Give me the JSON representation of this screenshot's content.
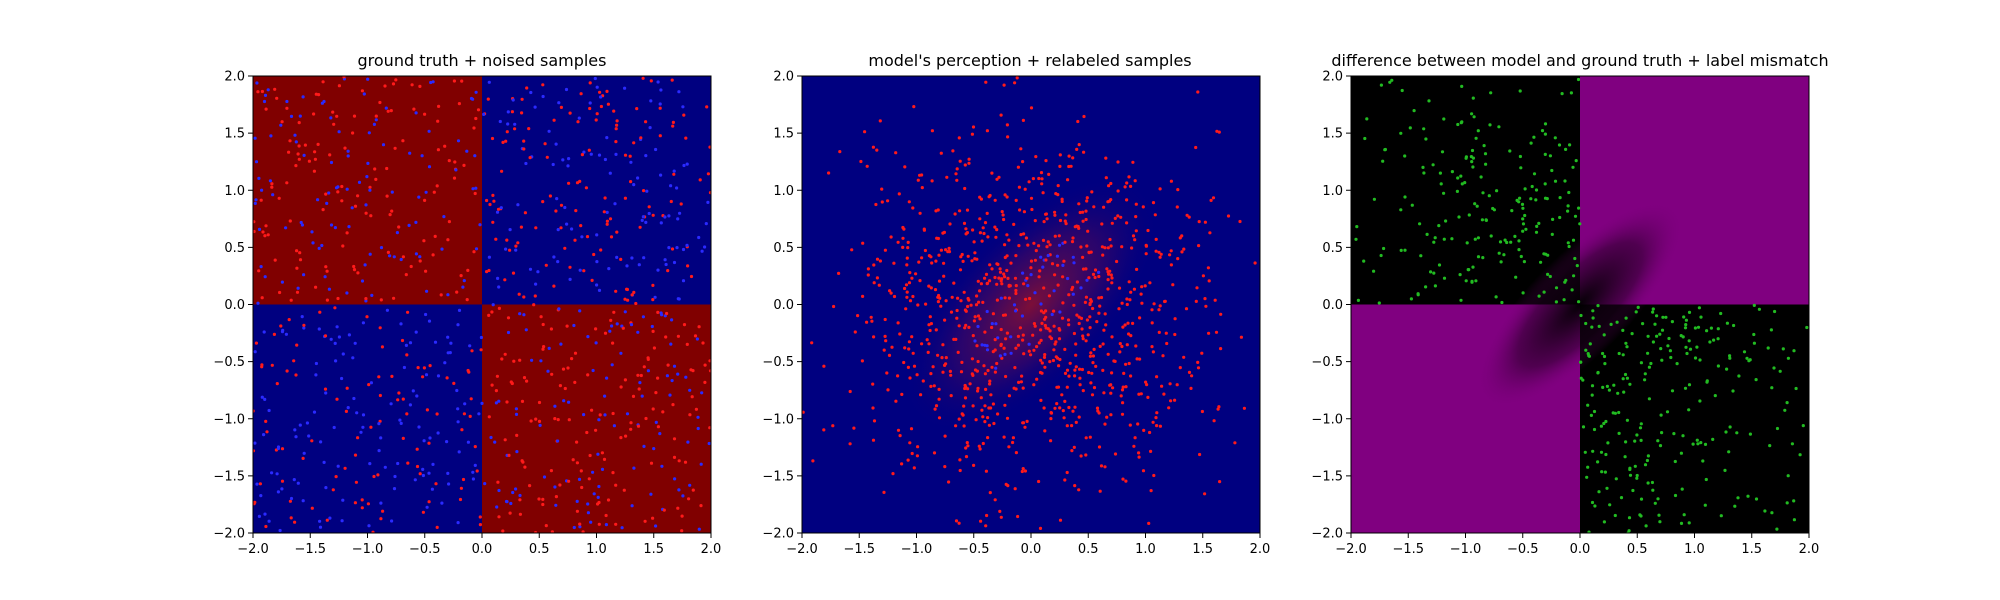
{
  "chart_data": [
    {
      "type": "heatmap",
      "title": "ground truth + noised samples",
      "xlabel": "",
      "ylabel": "",
      "xlim": [
        -2.0,
        2.0
      ],
      "ylim": [
        -2.0,
        2.0
      ],
      "xticks": [
        "−2.0",
        "−1.5",
        "−1.0",
        "−0.5",
        "0.0",
        "0.5",
        "1.0",
        "1.5",
        "2.0"
      ],
      "yticks": [
        "−2.0",
        "−1.5",
        "−1.0",
        "−0.5",
        "0.0",
        "0.5",
        "1.0",
        "1.5",
        "2.0"
      ],
      "grid": false,
      "background": "xor quadrants: red where x<0,y>0 and x>0,y<0; blue elsewhere",
      "colors": {
        "class_a": "#800000",
        "class_b": "#000080",
        "points_a": "#ff1a1a",
        "points_b": "#2a2aff"
      },
      "sample_distribution": "uniform over [-2,2]^2, points colored by noised labels",
      "n_points": 1000
    },
    {
      "type": "heatmap",
      "title": "model's perception + relabeled samples",
      "xlabel": "",
      "ylabel": "",
      "xlim": [
        -2.0,
        2.0
      ],
      "ylim": [
        -2.0,
        2.0
      ],
      "xticks": [
        "−2.0",
        "−1.5",
        "−1.0",
        "−0.5",
        "0.0",
        "0.5",
        "1.0",
        "1.5",
        "2.0"
      ],
      "yticks": [
        "−2.0",
        "−1.5",
        "−1.0",
        "−0.5",
        "0.0",
        "0.5",
        "1.0",
        "1.5",
        "2.0"
      ],
      "grid": false,
      "background": "mostly blue with faint reddish diagonal blob along y=x near origin",
      "colors": {
        "background": "#000080",
        "glow": "#7a1030",
        "points_a": "#ff1a1a",
        "points_b": "#2a2aff"
      },
      "sample_distribution": "gaussian around origin (sigma ~0.8), mostly red, a few blue near center",
      "n_points": 1000
    },
    {
      "type": "heatmap",
      "title": "difference between model and ground truth + label mismatch",
      "xlabel": "",
      "ylabel": "",
      "xlim": [
        -2.0,
        2.0
      ],
      "ylim": [
        -2.0,
        2.0
      ],
      "xticks": [
        "−2.0",
        "−1.5",
        "−1.0",
        "−0.5",
        "0.0",
        "0.5",
        "1.0",
        "1.5",
        "2.0"
      ],
      "yticks": [
        "−2.0",
        "−1.5",
        "−1.0",
        "−0.5",
        "0.0",
        "0.5",
        "1.0",
        "1.5",
        "2.0"
      ],
      "grid": false,
      "background": "black in x<0,y>0 and x>0,y<0; purple in x>0,y>0 and x<0,y<0 with dark diagonal near origin",
      "colors": {
        "dark": "#000000",
        "mismatch": "#800080",
        "points": "#22bb22"
      },
      "sample_distribution": "points in quadrants x<0,y>0 and x>0,y<0 (label mismatch)",
      "n_points": 450
    }
  ]
}
